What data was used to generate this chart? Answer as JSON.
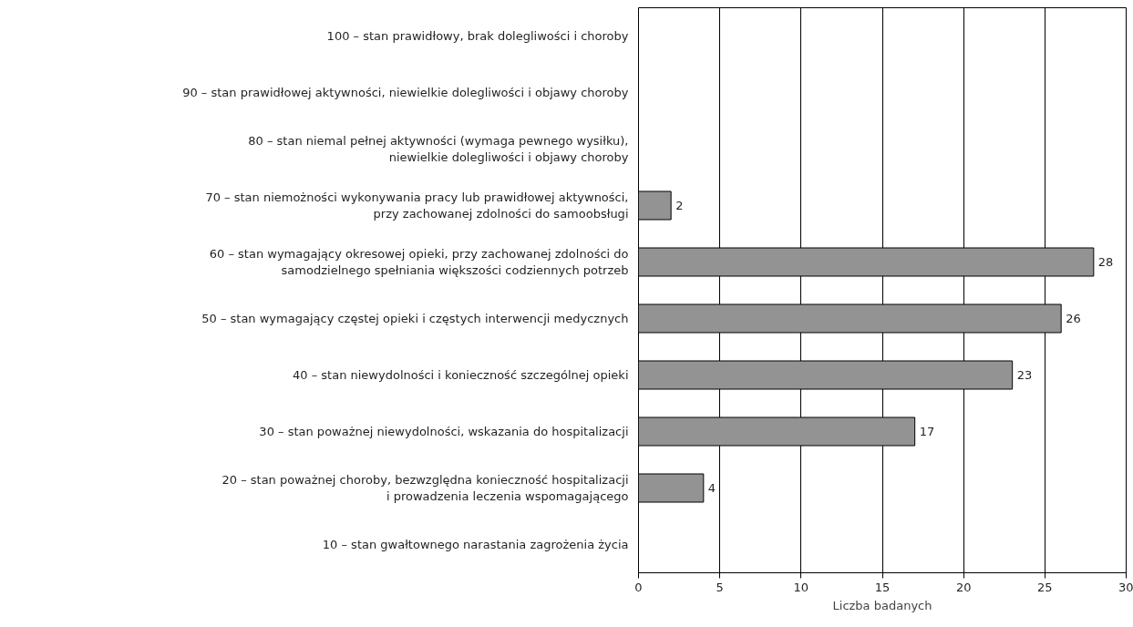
{
  "chart_data": {
    "type": "bar",
    "orientation": "horizontal",
    "xlabel": "Liczba badanych",
    "categories": [
      "100 – stan prawidłowy, brak dolegliwości i choroby",
      "90 – stan prawidłowej aktywności, niewielkie dolegliwości i objawy choroby",
      "80 – stan niemal pełnej aktywności (wymaga pewnego wysiłku),\nniewielkie dolegliwości i objawy choroby",
      "70 – stan niemożności wykonywania pracy lub prawidłowej aktywności,\nprzy zachowanej zdolności do samoobsługi",
      "60 – stan wymagający okresowej opieki, przy zachowanej zdolności do\nsamodzielnego spełniania większości codziennych potrzeb",
      "50 – stan wymagający częstej opieki i częstych interwencji medycznych",
      "40 – stan niewydolności i konieczność szczególnej opieki",
      "30 – stan poważnej niewydolności, wskazania do hospitalizacji",
      "20 – stan poważnej choroby, bezwzględna konieczność hospitalizacji\ni prowadzenia leczenia wspomagającego",
      "10 – stan gwałtownego narastania zagrożenia życia"
    ],
    "values": [
      null,
      null,
      null,
      2,
      28,
      26,
      23,
      17,
      4,
      null
    ],
    "value_labels": [
      null,
      null,
      null,
      "2",
      "28",
      "26",
      "23",
      "17",
      "4",
      null
    ],
    "color": "#939393",
    "xlim": [
      0,
      30
    ],
    "xticks": [
      0,
      5,
      10,
      15,
      20,
      25,
      30
    ],
    "grid": "x"
  }
}
